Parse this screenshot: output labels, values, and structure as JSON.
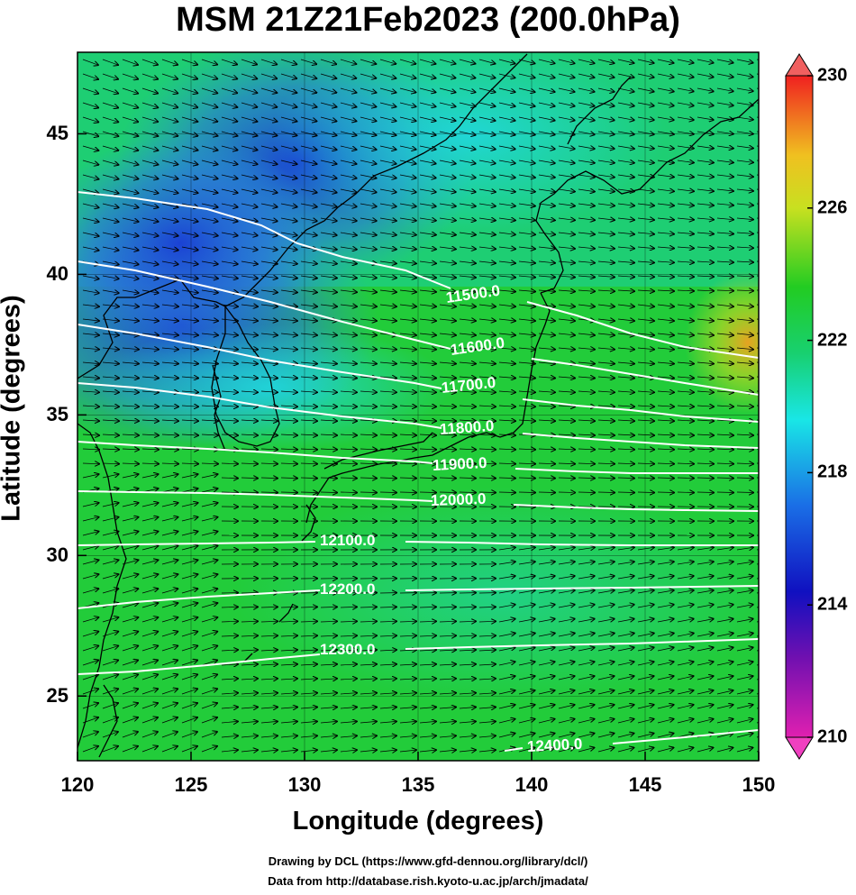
{
  "title": "MSM 21Z21Feb2023 (200.0hPa)",
  "xlabel": "Longitude (degrees)",
  "ylabel": "Latitude  (degrees)",
  "credits": [
    "Drawing by DCL (https://www.gfd-dennou.org/library/dcl/)",
    "Data from http://database.rish.kyoto-u.ac.jp/arch/jmadata/"
  ],
  "x_ticks": [
    "120",
    "125",
    "130",
    "135",
    "140",
    "145",
    "150"
  ],
  "y_ticks": [
    "25",
    "30",
    "35",
    "40",
    "45"
  ],
  "colorbar": {
    "ticks": [
      "210",
      "214",
      "218",
      "222",
      "226",
      "230"
    ],
    "range": [
      210,
      230
    ]
  },
  "contours": [
    {
      "label": "11500.0"
    },
    {
      "label": "11600.0"
    },
    {
      "label": "11700.0"
    },
    {
      "label": "11800.0"
    },
    {
      "label": "11900.0"
    },
    {
      "label": "12000.0"
    },
    {
      "label": "12100.0"
    },
    {
      "label": "12200.0"
    },
    {
      "label": "12300.0"
    },
    {
      "label": "12400.0"
    }
  ],
  "colors": {
    "cold": "#1a3dd6",
    "mid": "#19e6e6",
    "warm": "#1fd21f",
    "hot": "#f0a020"
  }
}
